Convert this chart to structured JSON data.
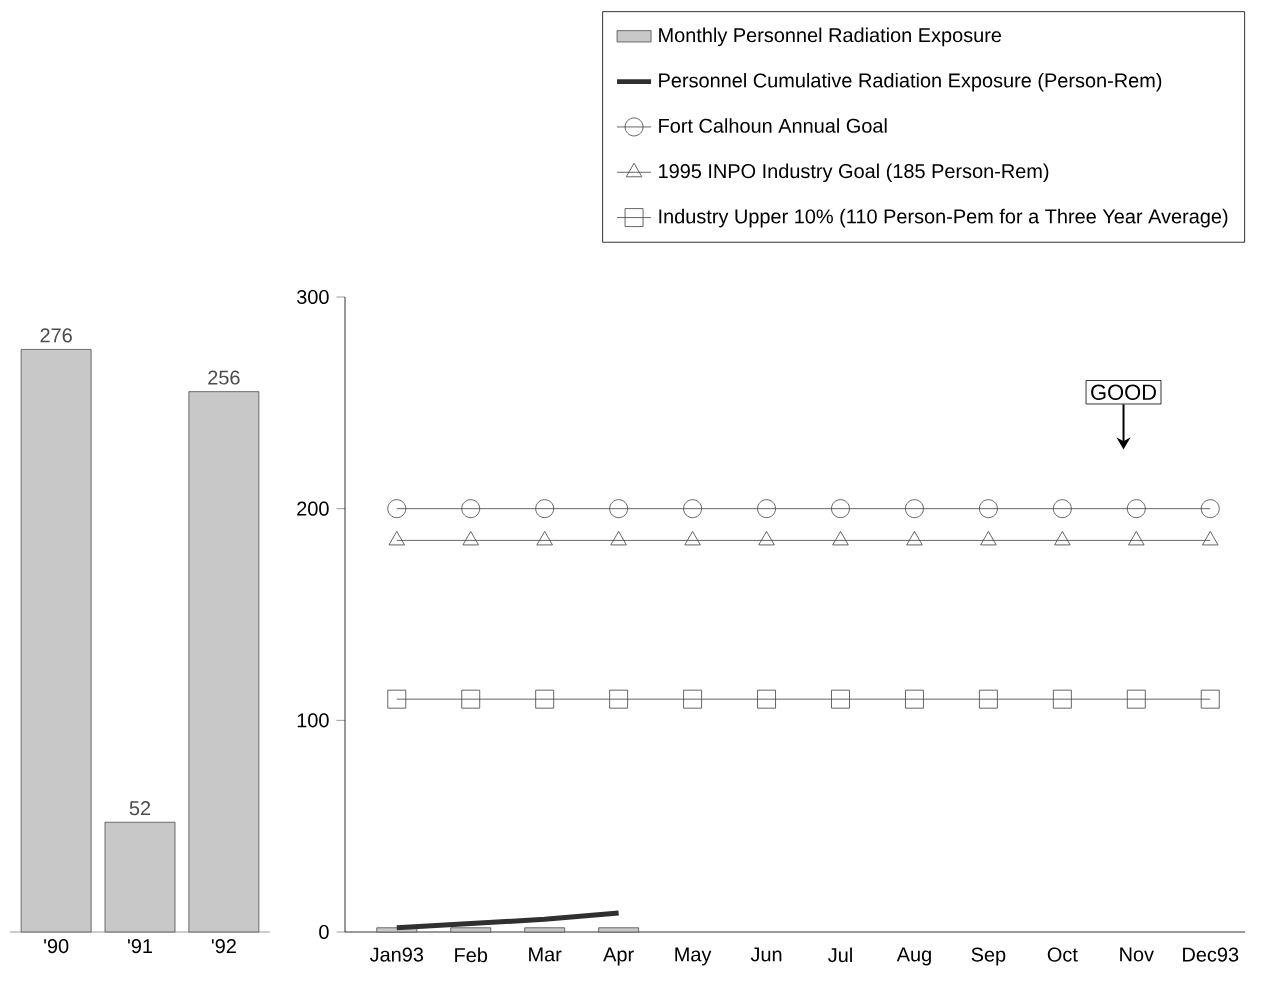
{
  "chart_data": [
    {
      "type": "bar",
      "categories": [
        "'90",
        "'91",
        "'92"
      ],
      "values": [
        276,
        52,
        256
      ],
      "color": "#c8c8c8",
      "data_labels": true
    },
    {
      "type": "line",
      "categories": [
        "Jan93",
        "Feb",
        "Mar",
        "Apr",
        "May",
        "Jun",
        "Jul",
        "Aug",
        "Sep",
        "Oct",
        "Nov",
        "Dec93"
      ],
      "series": [
        {
          "name": "Monthly Personnel Radiation Exposure",
          "type": "bar",
          "color": "#c8c8c8",
          "values": [
            2,
            2,
            2,
            2,
            null,
            null,
            null,
            null,
            null,
            null,
            null,
            null
          ]
        },
        {
          "name": "Personnel Cumulative Radiation Exposure (Person-Rem)",
          "type": "line",
          "color": "#303030",
          "values": [
            2,
            4,
            6,
            9,
            null,
            null,
            null,
            null,
            null,
            null,
            null,
            null
          ]
        },
        {
          "name": "Fort Calhoun Annual Goal",
          "type": "line",
          "marker": "circle",
          "color": "#404040",
          "values": [
            200,
            200,
            200,
            200,
            200,
            200,
            200,
            200,
            200,
            200,
            200,
            200
          ]
        },
        {
          "name": "1995 INPO Industry Goal (185 Person-Rem)",
          "type": "line",
          "marker": "triangle",
          "color": "#404040",
          "values": [
            185,
            185,
            185,
            185,
            185,
            185,
            185,
            185,
            185,
            185,
            185,
            185
          ]
        },
        {
          "name": "Industry Upper 10% (110 Person-Pem for a Three Year Average)",
          "type": "line",
          "marker": "square",
          "color": "#404040",
          "values": [
            110,
            110,
            110,
            110,
            110,
            110,
            110,
            110,
            110,
            110,
            110,
            110
          ]
        }
      ],
      "ylim": [
        0,
        300
      ],
      "yticks": [
        0,
        100,
        200,
        300
      ],
      "legend": "top right",
      "annotations": [
        "GOOD"
      ]
    }
  ]
}
